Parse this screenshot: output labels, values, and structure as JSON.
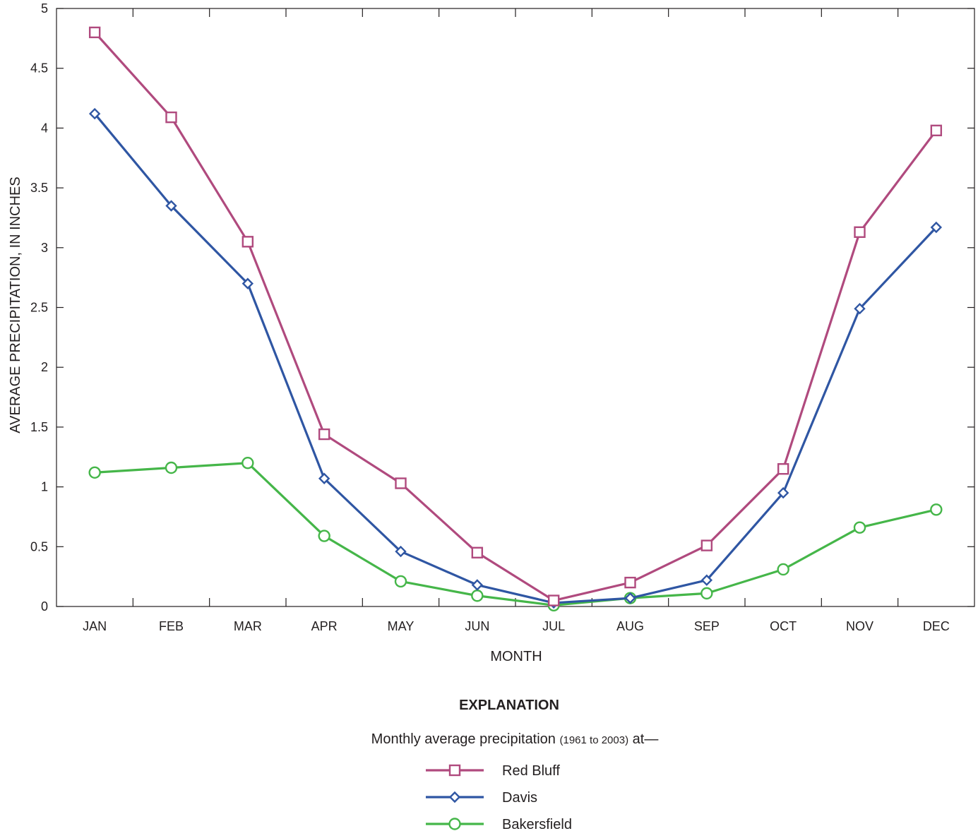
{
  "chart_data": {
    "type": "line",
    "categories": [
      "JAN",
      "FEB",
      "MAR",
      "APR",
      "MAY",
      "JUN",
      "JUL",
      "AUG",
      "SEP",
      "OCT",
      "NOV",
      "DEC"
    ],
    "xlabel": "MONTH",
    "ylabel": "AVERAGE PRECIPITATION, IN INCHES",
    "ylim": [
      0,
      5
    ],
    "yticks": [
      0,
      0.5,
      1,
      1.5,
      2,
      2.5,
      3,
      3.5,
      4,
      4.5,
      5
    ],
    "ytick_labels": [
      "0",
      "0.5",
      "1",
      "1.5",
      "2",
      "2.5",
      "3",
      "3.5",
      "4",
      "4.5",
      "5"
    ],
    "grid": false,
    "legend_position": "bottom-center",
    "series": [
      {
        "name": "Red Bluff",
        "marker": "square",
        "color": "#b04a7e",
        "values": [
          4.8,
          4.09,
          3.05,
          1.44,
          1.03,
          0.45,
          0.05,
          0.2,
          0.51,
          1.15,
          3.13,
          3.98
        ]
      },
      {
        "name": "Davis",
        "marker": "diamond",
        "color": "#2f56a3",
        "values": [
          4.12,
          3.35,
          2.7,
          1.07,
          0.46,
          0.18,
          0.03,
          0.07,
          0.22,
          0.95,
          2.49,
          3.17
        ]
      },
      {
        "name": "Bakersfield",
        "marker": "circle",
        "color": "#45b649",
        "values": [
          1.12,
          1.16,
          1.2,
          0.59,
          0.21,
          0.09,
          0.01,
          0.07,
          0.11,
          0.31,
          0.66,
          0.81
        ]
      }
    ]
  },
  "legend": {
    "title": "EXPLANATION",
    "subtitle_pre": "Monthly average precipitation ",
    "subtitle_period": "(1961 to 2003)",
    "subtitle_post": " at—"
  }
}
